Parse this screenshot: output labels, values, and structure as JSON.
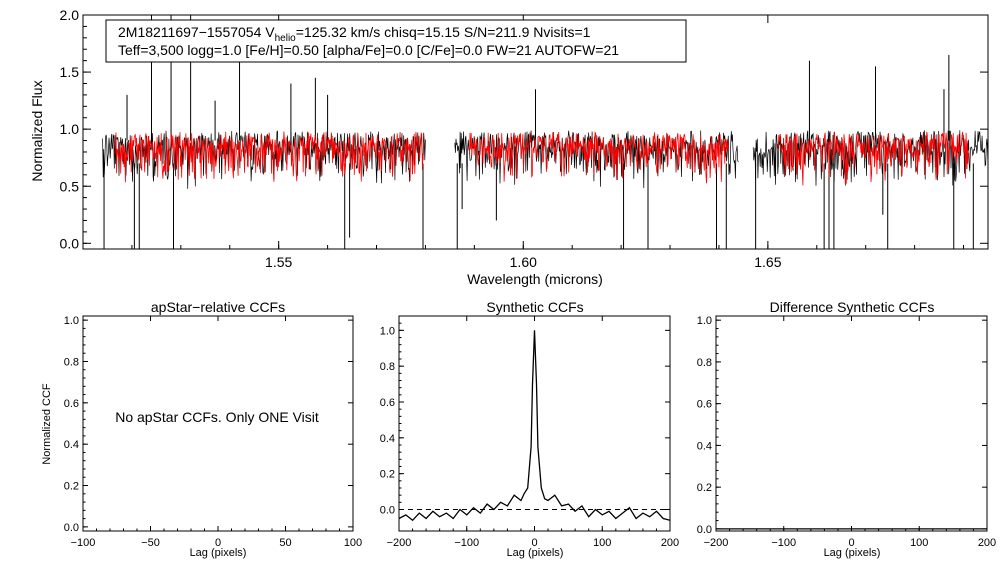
{
  "chart_data": [
    {
      "type": "line",
      "title": "",
      "header_line1_prefix": "2M18211697−1557054  V",
      "header_line1_sub": "helio",
      "header_line1_suffix": "=125.32 km/s  chisq=15.15  S/N=211.9  Nvisits=1",
      "header_line2": "Teff=3,500 logg=1.0 [Fe/H]=0.50 [alpha/Fe]=0.0 [C/Fe]=0.0 FW=21 AUTOFW=21",
      "xlabel": "Wavelength (microns)",
      "ylabel": "Normalized Flux",
      "xlim": [
        1.51,
        1.695
      ],
      "ylim": [
        -0.05,
        2.0
      ],
      "xticks": [
        1.55,
        1.6,
        1.65
      ],
      "xtick_labels": [
        "1.55",
        "1.60",
        "1.65"
      ],
      "yticks": [
        0.0,
        0.5,
        1.0,
        1.5,
        2.0
      ],
      "ytick_labels": [
        "0.0",
        "0.5",
        "1.0",
        "1.5",
        "2.0"
      ],
      "chip_ranges": [
        [
          1.514,
          1.58
        ],
        [
          1.586,
          1.644
        ],
        [
          1.647,
          1.695
        ]
      ],
      "baseline": 0.9,
      "series": [
        {
          "name": "observed spectrum",
          "color": "#000000"
        },
        {
          "name": "model spectrum",
          "color": "#ff0000",
          "range": [
            1.5165,
            1.5795
          ]
        },
        {
          "name": "model spectrum",
          "color": "#ff0000",
          "range": [
            1.589,
            1.642
          ]
        },
        {
          "name": "model spectrum",
          "color": "#ff0000",
          "range": [
            1.652,
            1.691
          ]
        }
      ],
      "emission_spikes": [
        {
          "x": 1.519,
          "y": 1.3
        },
        {
          "x": 1.524,
          "y": 2.0
        },
        {
          "x": 1.528,
          "y": 2.0
        },
        {
          "x": 1.532,
          "y": 2.0
        },
        {
          "x": 1.537,
          "y": 1.25
        },
        {
          "x": 1.542,
          "y": 1.7
        },
        {
          "x": 1.5525,
          "y": 1.4
        },
        {
          "x": 1.5575,
          "y": 1.45
        },
        {
          "x": 1.56,
          "y": 1.3
        },
        {
          "x": 1.6025,
          "y": 1.35
        },
        {
          "x": 1.6585,
          "y": 1.6
        },
        {
          "x": 1.672,
          "y": 1.55
        },
        {
          "x": 1.686,
          "y": 1.35
        },
        {
          "x": 1.687,
          "y": 1.65
        }
      ],
      "absorption_dips": [
        {
          "x": 1.5143,
          "y": -0.05
        },
        {
          "x": 1.5205,
          "y": -0.05
        },
        {
          "x": 1.5215,
          "y": -0.05
        },
        {
          "x": 1.5285,
          "y": -0.05
        },
        {
          "x": 1.5635,
          "y": -0.05
        },
        {
          "x": 1.5645,
          "y": 0.05
        },
        {
          "x": 1.5795,
          "y": -0.05
        },
        {
          "x": 1.5865,
          "y": -0.05
        },
        {
          "x": 1.5875,
          "y": 0.3
        },
        {
          "x": 1.5945,
          "y": 0.2
        },
        {
          "x": 1.6205,
          "y": -0.05
        },
        {
          "x": 1.6255,
          "y": -0.05
        },
        {
          "x": 1.6395,
          "y": -0.05
        },
        {
          "x": 1.6415,
          "y": -0.05
        },
        {
          "x": 1.6475,
          "y": -0.05
        },
        {
          "x": 1.6615,
          "y": -0.05
        },
        {
          "x": 1.6625,
          "y": -0.05
        },
        {
          "x": 1.6635,
          "y": -0.05
        },
        {
          "x": 1.6735,
          "y": 0.25
        },
        {
          "x": 1.6745,
          "y": -0.05
        },
        {
          "x": 1.688,
          "y": -0.05
        },
        {
          "x": 1.692,
          "y": -0.05
        }
      ]
    },
    {
      "type": "line",
      "title": "apStar−relative CCFs",
      "xlabel": "Lag (pixels)",
      "ylabel": "Normalized CCF",
      "xlim": [
        -100,
        100
      ],
      "ylim": [
        -0.02,
        1.02
      ],
      "xticks": [
        -100,
        -50,
        0,
        50,
        100
      ],
      "xtick_labels": [
        "−100",
        "−50",
        "0",
        "50",
        "100"
      ],
      "yticks": [
        0.0,
        0.2,
        0.4,
        0.6,
        0.8,
        1.0
      ],
      "ytick_labels": [
        "0.0",
        "0.2",
        "0.4",
        "0.6",
        "0.8",
        "1.0"
      ],
      "annotation": "No apStar CCFs.  Only ONE Visit",
      "series": []
    },
    {
      "type": "line",
      "title": "Synthetic CCFs",
      "xlabel": "Lag (pixels)",
      "ylabel": "",
      "xlim": [
        -200,
        200
      ],
      "ylim": [
        -0.12,
        1.08
      ],
      "xticks": [
        -200,
        -100,
        0,
        100,
        200
      ],
      "xtick_labels": [
        "−200",
        "−100",
        "0",
        "100",
        "200"
      ],
      "yticks": [
        0.0,
        0.2,
        0.4,
        0.6,
        0.8,
        1.0
      ],
      "ytick_labels": [
        "0.0",
        "0.2",
        "0.4",
        "0.6",
        "0.8",
        "1.0"
      ],
      "reference_line": {
        "y": 0.0,
        "style": "dashed"
      },
      "series": [
        {
          "name": "CCF",
          "color": "#000000",
          "x": [
            -200,
            -190,
            -180,
            -170,
            -160,
            -150,
            -140,
            -130,
            -120,
            -110,
            -100,
            -90,
            -80,
            -70,
            -60,
            -50,
            -40,
            -30,
            -20,
            -15,
            -10,
            -5,
            -3,
            0,
            3,
            5,
            10,
            15,
            20,
            30,
            40,
            50,
            60,
            70,
            80,
            90,
            100,
            110,
            120,
            130,
            140,
            150,
            160,
            170,
            180,
            190,
            200
          ],
          "y": [
            -0.05,
            -0.03,
            -0.06,
            -0.02,
            -0.05,
            -0.01,
            -0.04,
            -0.02,
            -0.05,
            0.0,
            -0.03,
            0.01,
            -0.02,
            0.03,
            0.0,
            0.04,
            0.02,
            0.08,
            0.05,
            0.09,
            0.12,
            0.35,
            0.7,
            1.0,
            0.7,
            0.35,
            0.12,
            0.06,
            0.05,
            0.08,
            0.02,
            0.03,
            -0.01,
            0.02,
            -0.04,
            0.0,
            -0.03,
            -0.01,
            -0.05,
            -0.02,
            0.01,
            -0.05,
            -0.02,
            -0.04,
            -0.01,
            -0.05,
            -0.06
          ]
        }
      ]
    },
    {
      "type": "line",
      "title": "Difference Synthetic CCFs",
      "xlabel": "Lag (pixels)",
      "ylabel": "",
      "xlim": [
        -200,
        200
      ],
      "ylim": [
        -0.01,
        1.02
      ],
      "xticks": [
        -200,
        -100,
        0,
        100,
        200
      ],
      "xtick_labels": [
        "−200",
        "−100",
        "0",
        "100",
        "200"
      ],
      "yticks": [
        0.0,
        0.2,
        0.4,
        0.6,
        0.8,
        1.0
      ],
      "ytick_labels": [
        "0.0",
        "0.2",
        "0.4",
        "0.6",
        "0.8",
        "1.0"
      ],
      "series": [
        {
          "name": "difference CCF",
          "color": "#000000",
          "x": [
            -200,
            200
          ],
          "y": [
            0.0,
            0.0
          ]
        }
      ]
    }
  ]
}
